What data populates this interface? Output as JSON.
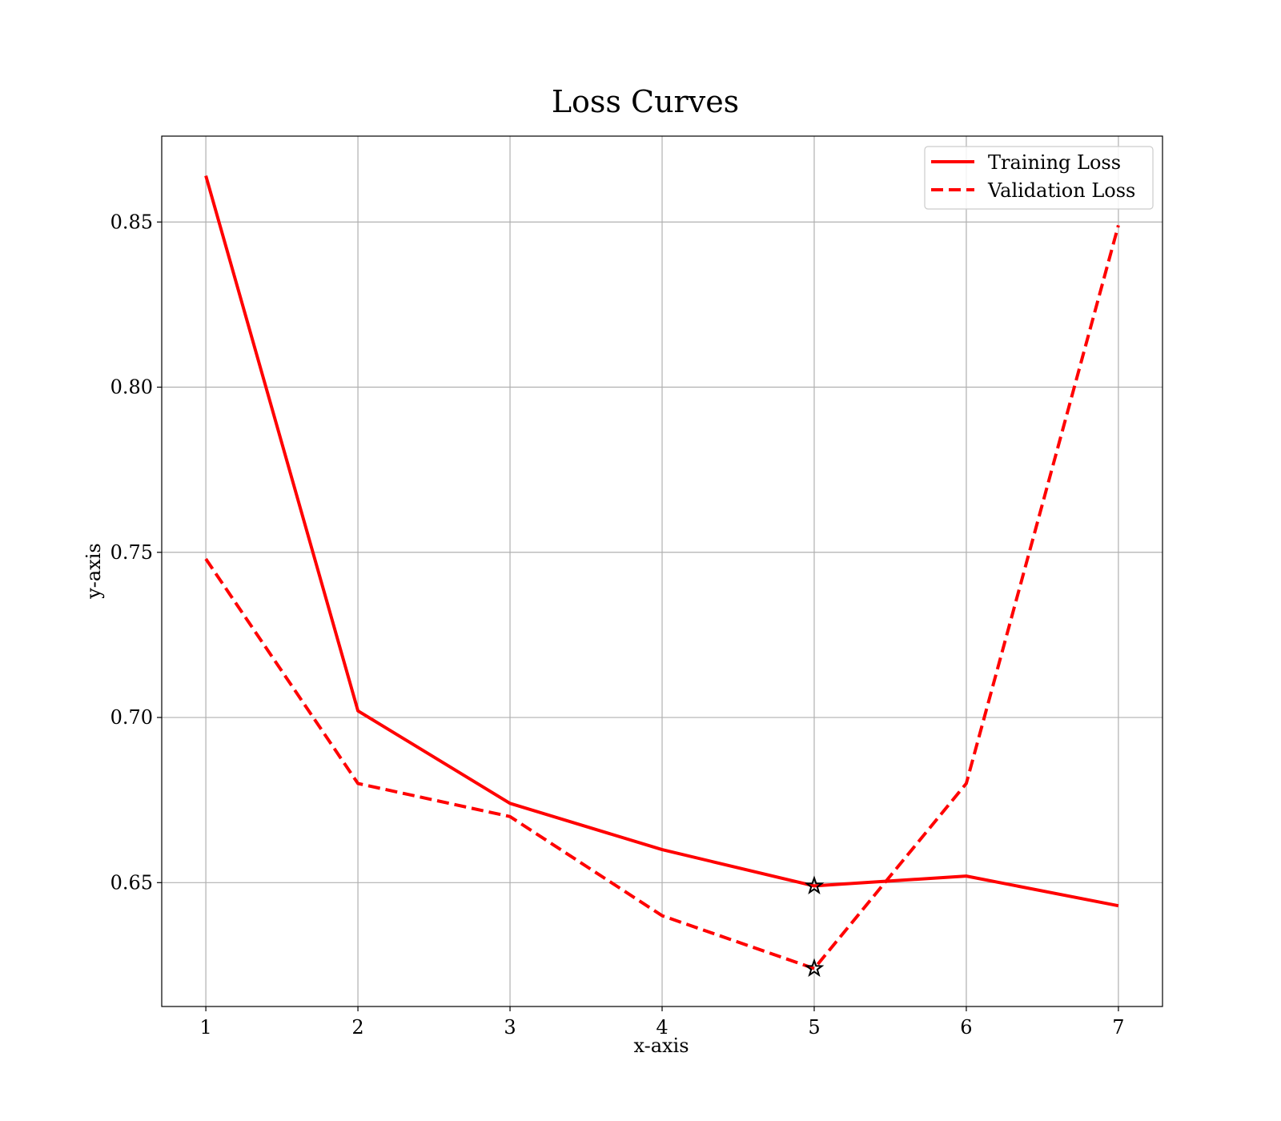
{
  "chart_data": {
    "type": "line",
    "title": "Loss Curves",
    "xlabel": "x-axis",
    "ylabel": "y-axis",
    "x": [
      1,
      2,
      3,
      4,
      5,
      6,
      7
    ],
    "xlim": [
      0.71,
      7.29
    ],
    "ylim": [
      0.6125,
      0.876
    ],
    "xticks": [
      1,
      2,
      3,
      4,
      5,
      6,
      7
    ],
    "yticks": [
      0.65,
      0.7,
      0.75,
      0.8,
      0.85
    ],
    "ytick_labels": [
      "0.65",
      "0.70",
      "0.75",
      "0.80",
      "0.85"
    ],
    "xtick_labels": [
      "1",
      "2",
      "3",
      "4",
      "5",
      "6",
      "7"
    ],
    "grid": true,
    "legend_position": "top-right",
    "series": [
      {
        "name": "Training Loss",
        "values": [
          0.864,
          0.702,
          0.674,
          0.66,
          0.649,
          0.652,
          0.643
        ],
        "color": "#ff0000",
        "style": "solid",
        "marker_index": 4
      },
      {
        "name": "Validation Loss",
        "values": [
          0.748,
          0.68,
          0.67,
          0.64,
          0.624,
          0.68,
          0.849
        ],
        "color": "#ff0000",
        "style": "dashed",
        "marker_index": 4
      }
    ],
    "annotations": [
      {
        "type": "star-marker",
        "series": "Training Loss",
        "x": 5,
        "y": 0.649,
        "color": "#000000"
      },
      {
        "type": "star-marker",
        "series": "Validation Loss",
        "x": 5,
        "y": 0.624,
        "color": "#000000"
      }
    ]
  }
}
